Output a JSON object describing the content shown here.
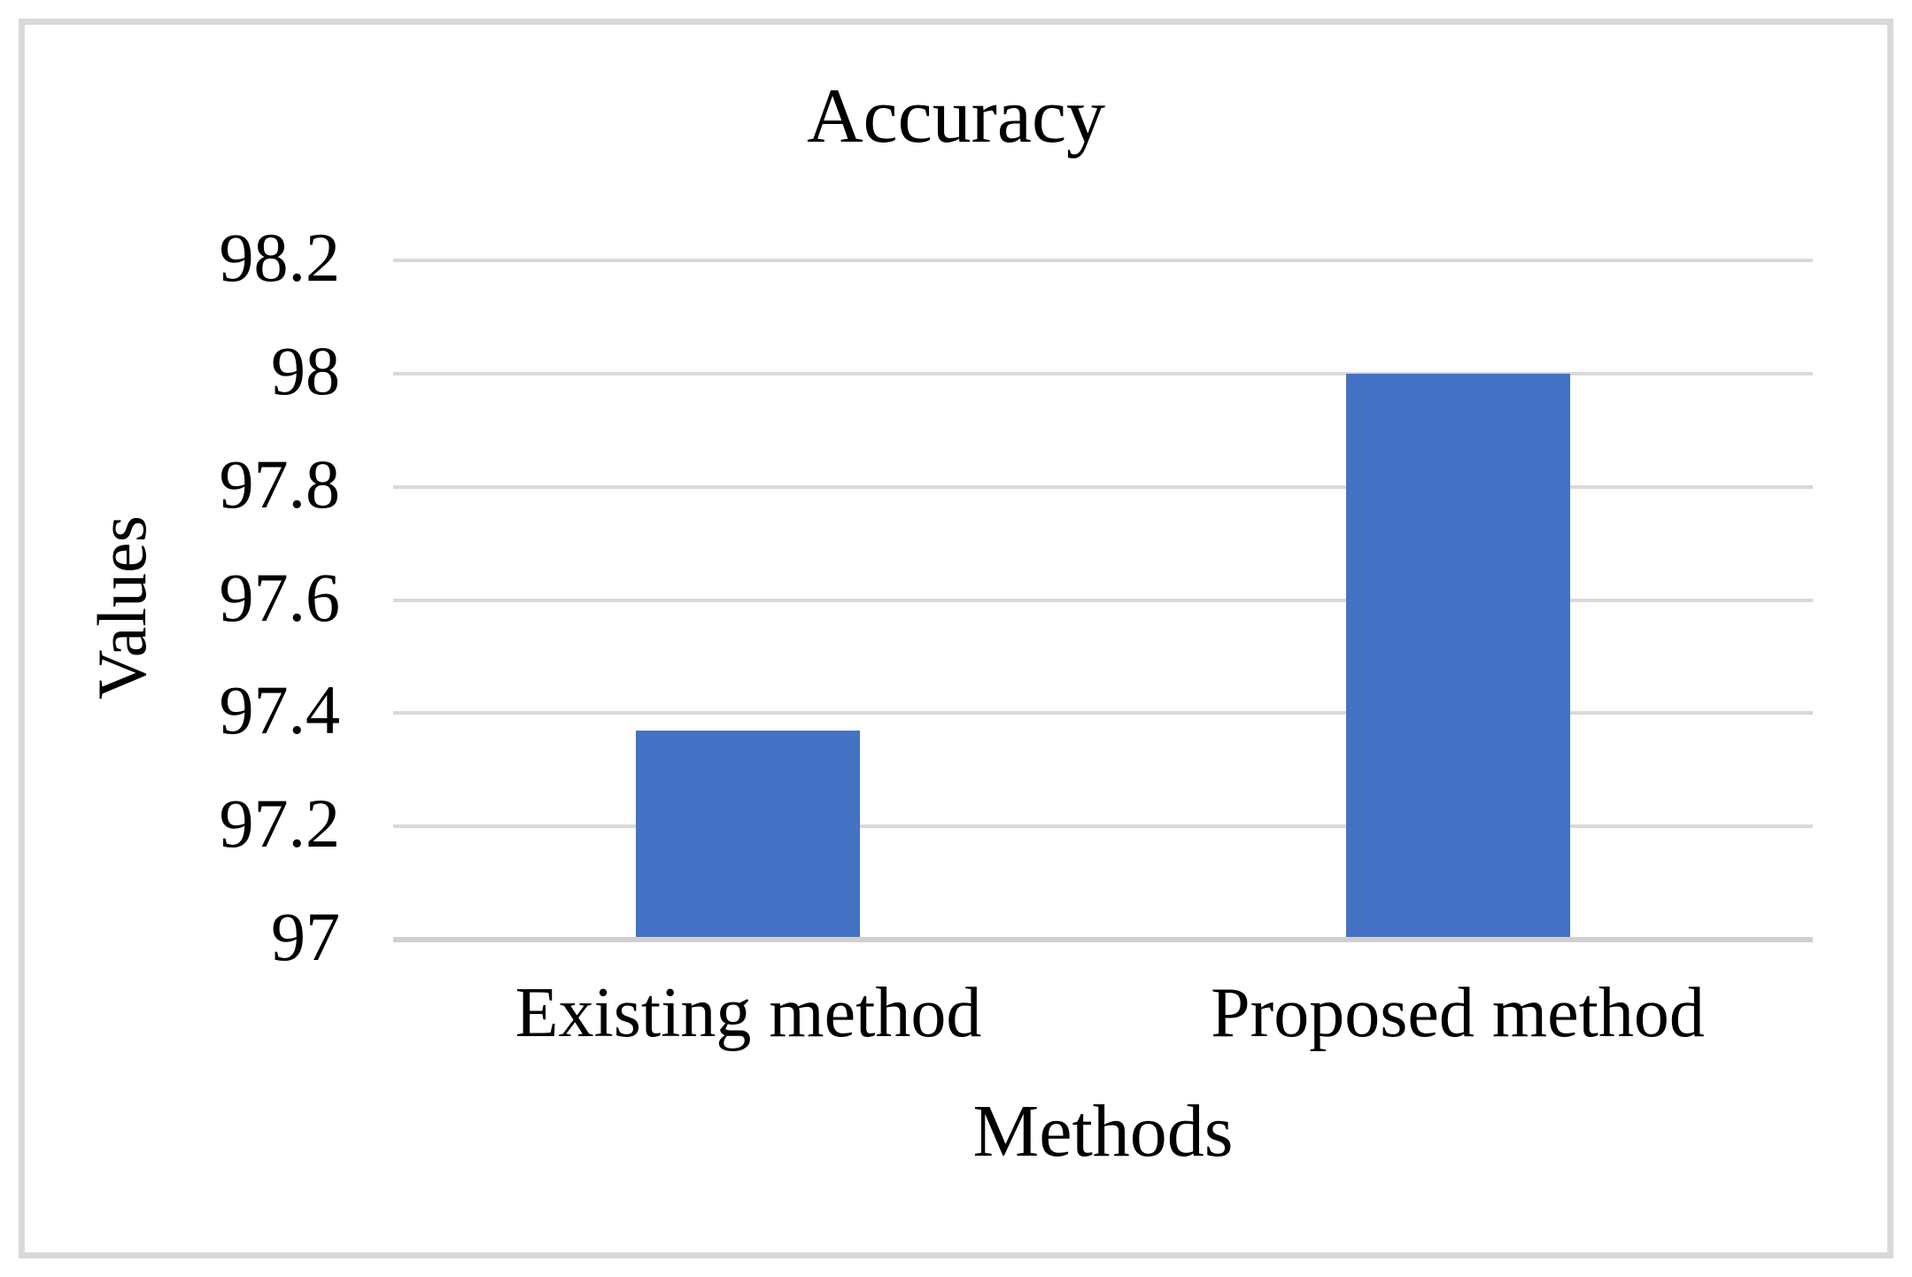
{
  "figure": {
    "background": "#FFFFFF",
    "border_color": "#D9D9D9"
  },
  "chart_data": {
    "type": "bar",
    "title": "Accuracy",
    "xlabel": "Methods",
    "ylabel": "Values",
    "categories": [
      "Existing method",
      "Proposed method"
    ],
    "values": [
      97.37,
      98
    ],
    "ylim": [
      97,
      98.2
    ],
    "yticks": [
      {
        "value": 98.2,
        "label": "98.2"
      },
      {
        "value": 98,
        "label": "98"
      },
      {
        "value": 97.8,
        "label": "97.8"
      },
      {
        "value": 97.6,
        "label": "97.6"
      },
      {
        "value": 97.4,
        "label": "97.4"
      },
      {
        "value": 97.2,
        "label": "97.2"
      },
      {
        "value": 97,
        "label": "97"
      }
    ],
    "grid": "horizontal",
    "legend": null,
    "bar_color": "#4472C4",
    "gridline_color": "#D9D9D9",
    "axis_line_color": "#D0D0D0",
    "text_color": "#000000"
  }
}
